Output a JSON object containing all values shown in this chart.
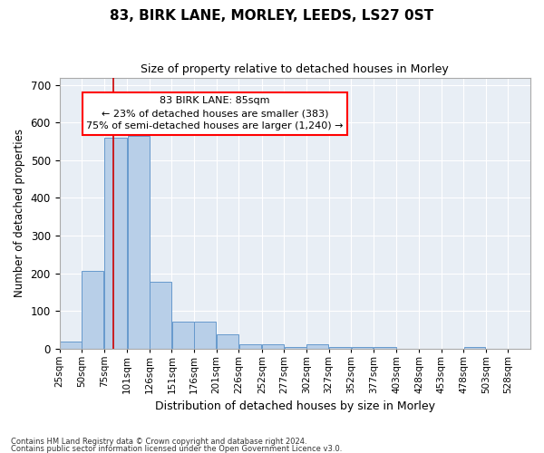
{
  "title": "83, BIRK LANE, MORLEY, LEEDS, LS27 0ST",
  "subtitle": "Size of property relative to detached houses in Morley",
  "xlabel": "Distribution of detached houses by size in Morley",
  "ylabel": "Number of detached properties",
  "footnote1": "Contains HM Land Registry data © Crown copyright and database right 2024.",
  "footnote2": "Contains public sector information licensed under the Open Government Licence v3.0.",
  "annotation_line1": "83 BIRK LANE: 85sqm",
  "annotation_line2": "← 23% of detached houses are smaller (383)",
  "annotation_line3": "75% of semi-detached houses are larger (1,240) →",
  "bar_color": "#b8cfe8",
  "bar_edge_color": "#6699cc",
  "ref_line_color": "#cc0000",
  "background_color": "#e8eef5",
  "bin_labels": [
    "25sqm",
    "50sqm",
    "75sqm",
    "101sqm",
    "126sqm",
    "151sqm",
    "176sqm",
    "201sqm",
    "226sqm",
    "252sqm",
    "277sqm",
    "302sqm",
    "327sqm",
    "352sqm",
    "377sqm",
    "403sqm",
    "428sqm",
    "453sqm",
    "478sqm",
    "503sqm",
    "528sqm"
  ],
  "bar_heights": [
    18,
    205,
    560,
    565,
    178,
    72,
    72,
    38,
    12,
    12,
    4,
    12,
    4,
    4,
    4,
    0,
    0,
    0,
    4,
    0,
    0
  ],
  "bin_edges": [
    25,
    50,
    75,
    101,
    126,
    151,
    176,
    201,
    226,
    252,
    277,
    302,
    327,
    352,
    377,
    403,
    428,
    453,
    478,
    503,
    528,
    553
  ],
  "ref_line_x": 85,
  "ylim": [
    0,
    720
  ],
  "yticks": [
    0,
    100,
    200,
    300,
    400,
    500,
    600,
    700
  ],
  "xlim": [
    25,
    553
  ]
}
